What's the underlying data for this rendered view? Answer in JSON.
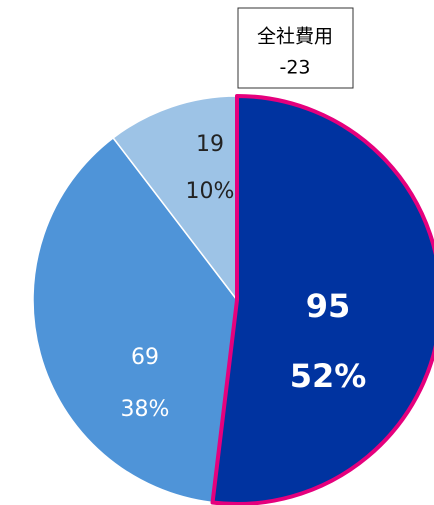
{
  "chart_data": {
    "type": "pie",
    "categories": [
      null,
      null,
      null
    ],
    "values": [
      95,
      69,
      19
    ],
    "percent_labels": [
      "52%",
      "38%",
      "10%"
    ],
    "colors": [
      "#0033a0",
      "#4f94d8",
      "#9dc3e6"
    ],
    "highlight_color": "#e5007d",
    "annotation": {
      "label": "全社費用",
      "value": -23
    }
  }
}
